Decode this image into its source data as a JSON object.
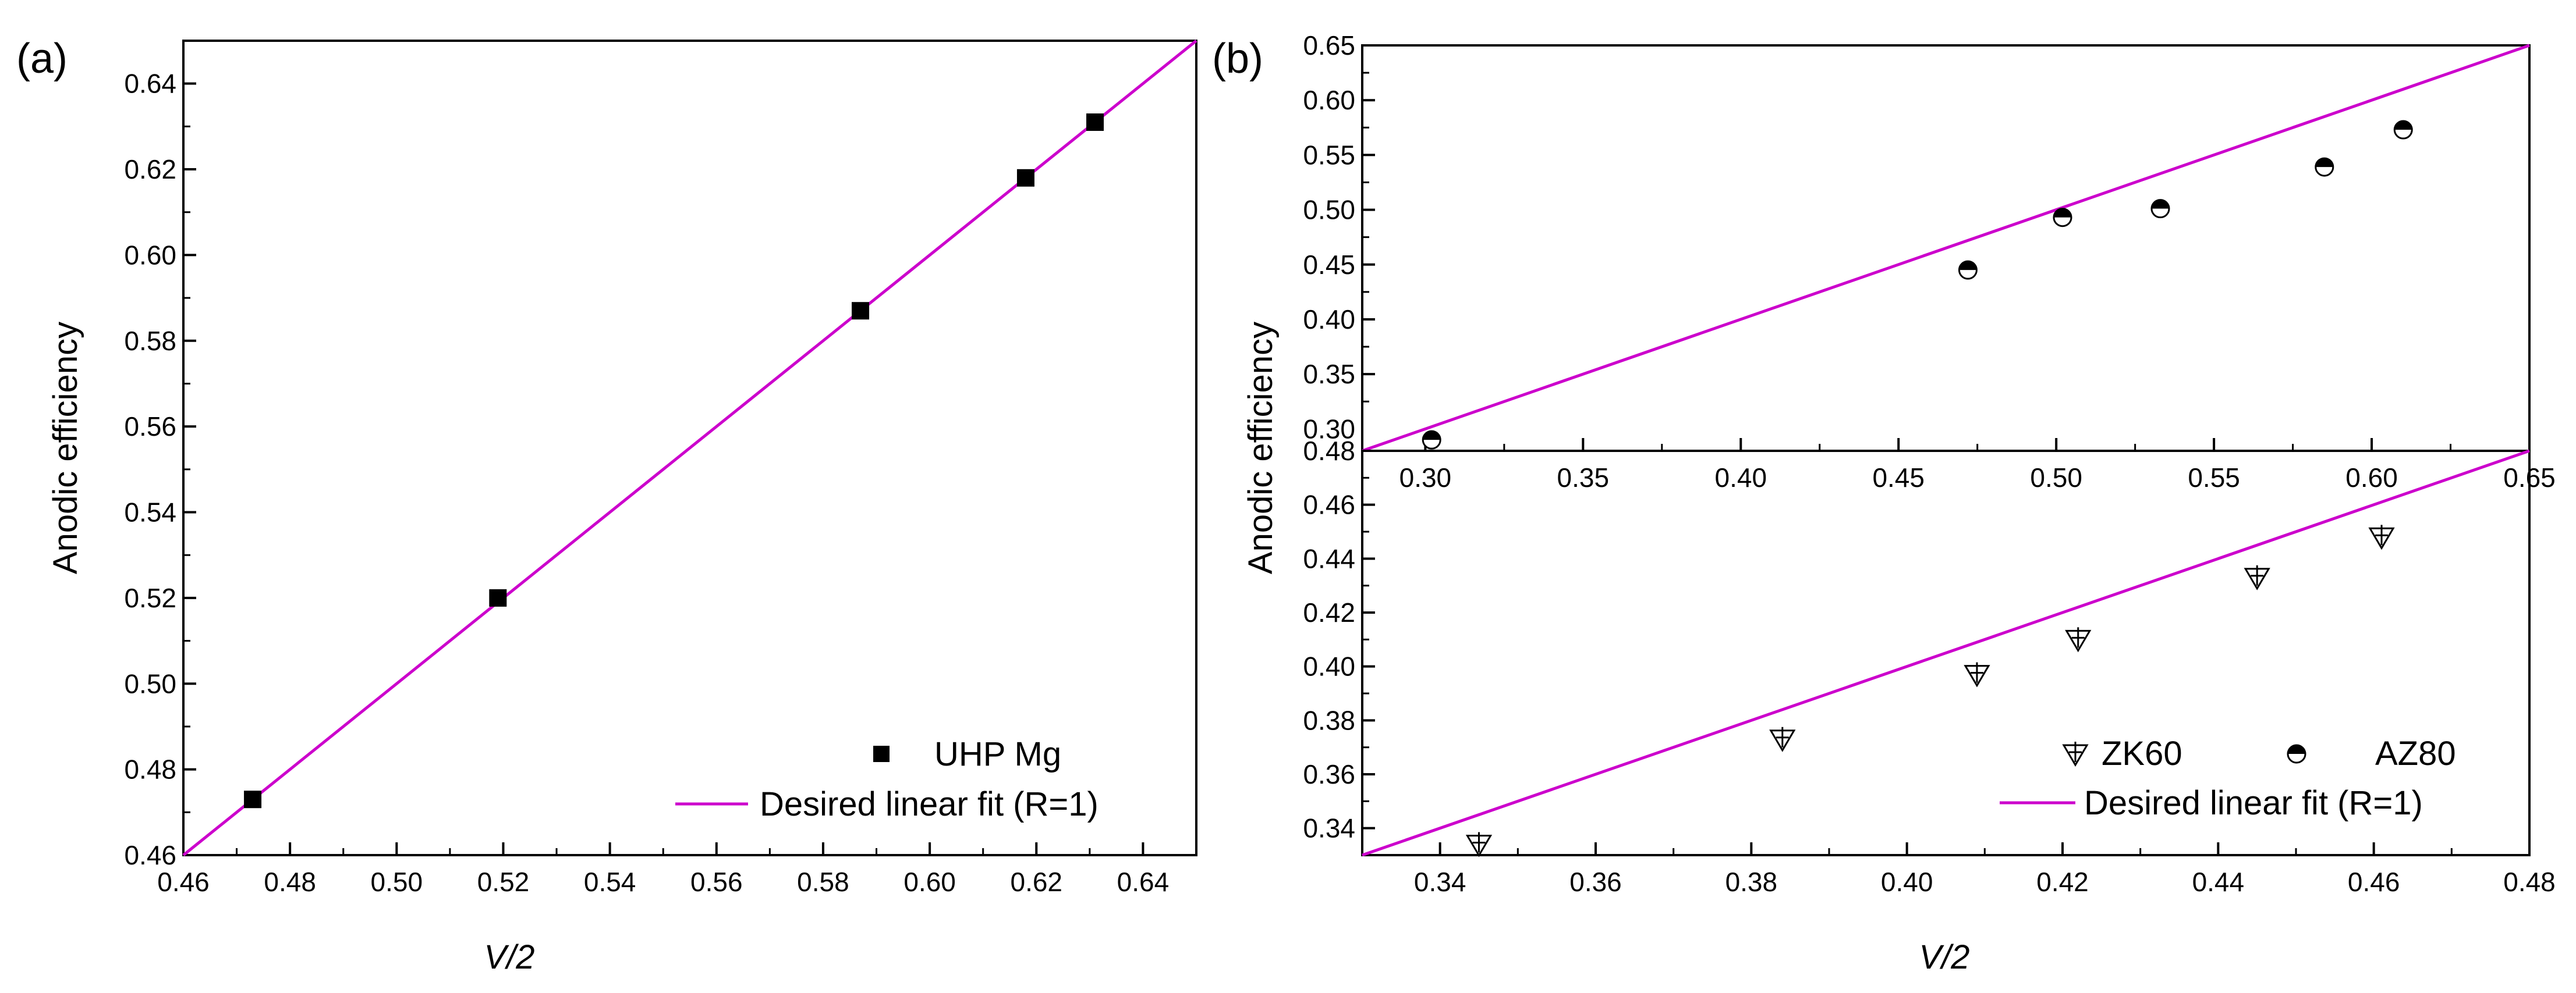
{
  "chart_data": [
    {
      "panel_label": "(a)",
      "type": "scatter",
      "xlabel": "V/2",
      "ylabel": "Anodic efficiency",
      "xlim": [
        0.46,
        0.65
      ],
      "ylim": [
        0.46,
        0.65
      ],
      "xticks": [
        "0.46",
        "0.48",
        "0.50",
        "0.52",
        "0.54",
        "0.56",
        "0.58",
        "0.60",
        "0.62",
        "0.64"
      ],
      "yticks": [
        "0.46",
        "0.48",
        "0.50",
        "0.52",
        "0.54",
        "0.56",
        "0.58",
        "0.60",
        "0.62",
        "0.64"
      ],
      "series": [
        {
          "name": "UHP Mg",
          "marker": "filled-square",
          "color": "#000000",
          "points": [
            [
              0.473,
              0.473
            ],
            [
              0.519,
              0.52
            ],
            [
              0.587,
              0.587
            ],
            [
              0.618,
              0.618
            ],
            [
              0.631,
              0.631
            ]
          ]
        }
      ],
      "fit_line": {
        "name": "Desired linear fit (R=1)",
        "color": "#cc00cc",
        "from": [
          0.46,
          0.46
        ],
        "to": [
          0.65,
          0.65
        ]
      },
      "legend_position": "bottom-right"
    },
    {
      "panel_label": "(b)",
      "type": "scatter",
      "xlabel": "",
      "ylabel": "",
      "xlim": [
        0.28,
        0.65
      ],
      "ylim": [
        0.28,
        0.65
      ],
      "xticks": [
        "0.30",
        "0.35",
        "0.40",
        "0.45",
        "0.50",
        "0.55",
        "0.60",
        "0.65"
      ],
      "yticks": [
        "0.30",
        "0.35",
        "0.40",
        "0.45",
        "0.50",
        "0.55",
        "0.60",
        "0.65"
      ],
      "series": [
        {
          "name": "AZ80",
          "marker": "half-filled-circle",
          "color": "#000000",
          "points": [
            [
              0.302,
              0.29
            ],
            [
              0.472,
              0.445
            ],
            [
              0.502,
              0.493
            ],
            [
              0.533,
              0.501
            ],
            [
              0.585,
              0.539
            ],
            [
              0.61,
              0.573
            ]
          ]
        }
      ],
      "fit_line": {
        "name": "Desired linear fit (R=1)",
        "color": "#cc00cc",
        "from": [
          0.28,
          0.28
        ],
        "to": [
          0.65,
          0.65
        ]
      },
      "legend_position": "none"
    },
    {
      "panel_label": "",
      "type": "scatter",
      "xlabel": "V/2",
      "ylabel": "Anodic efficiency",
      "xlim": [
        0.33,
        0.48
      ],
      "ylim": [
        0.33,
        0.48
      ],
      "xticks": [
        "0.34",
        "0.36",
        "0.38",
        "0.40",
        "0.42",
        "0.44",
        "0.46",
        "0.48"
      ],
      "yticks": [
        "0.34",
        "0.36",
        "0.38",
        "0.40",
        "0.42",
        "0.44",
        "0.46",
        "0.48"
      ],
      "series": [
        {
          "name": "ZK60",
          "marker": "triangle-down-plus",
          "color": "#000000",
          "points": [
            [
              0.345,
              0.334
            ],
            [
              0.384,
              0.373
            ],
            [
              0.409,
              0.397
            ],
            [
              0.422,
              0.41
            ],
            [
              0.445,
              0.433
            ],
            [
              0.461,
              0.448
            ]
          ]
        }
      ],
      "fit_line": {
        "name": "Desired linear fit (R=1)",
        "color": "#cc00cc",
        "from": [
          0.33,
          0.33
        ],
        "to": [
          0.48,
          0.48
        ]
      },
      "legend_position": "bottom-right"
    }
  ],
  "legend_labels": {
    "uhp": "UHP Mg",
    "zk60": "ZK60",
    "az80": "AZ80",
    "fit_a": "Desired linear fit (R=1)",
    "fit_b": "Desired linear fit (R=1)"
  },
  "colors": {
    "fit": "#cc00cc",
    "axis": "#000000",
    "marker": "#000000"
  }
}
